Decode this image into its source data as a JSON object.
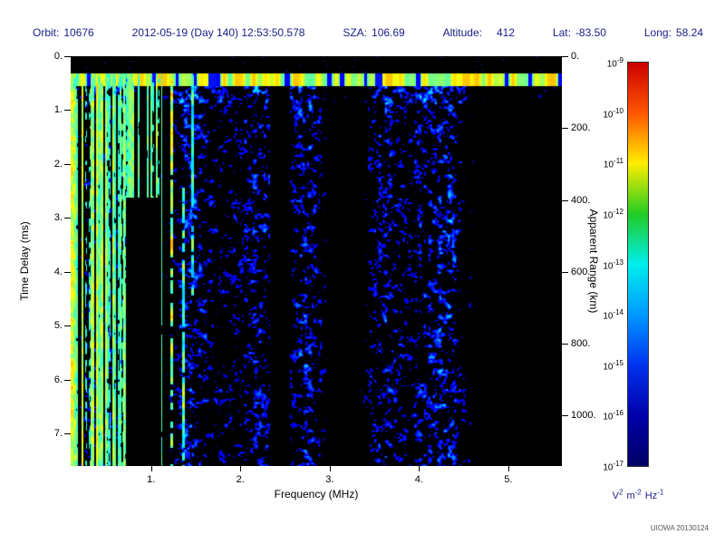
{
  "header": {
    "orbit_label": "Orbit:",
    "orbit_value": "10676",
    "datetime": "2012-05-19 (Day 140) 12:53:50.578",
    "sza_label": "SZA:",
    "sza_value": "106.69",
    "altitude_label": "Altitude:",
    "altitude_value": "412",
    "lat_label": "Lat:",
    "lat_value": "-83.50",
    "long_label": "Long:",
    "long_value": "58.24"
  },
  "axes": {
    "x_title": "Frequency (MHz)",
    "x_tick_labels": [
      "1.",
      "2.",
      "3.",
      "4.",
      "5."
    ],
    "y_left_title": "Time Delay (ms)",
    "y_left_tick_labels": [
      "0.",
      "1.",
      "2.",
      "3.",
      "4.",
      "5.",
      "6.",
      "7."
    ],
    "y_right_title": "Apparent Range (km)",
    "y_right_tick_labels": [
      "0.",
      "200.",
      "400.",
      "600.",
      "800.",
      "1000."
    ]
  },
  "colorbar": {
    "base": "10",
    "exponents": [
      "-9",
      "-10",
      "-11",
      "-12",
      "-13",
      "-14",
      "-15",
      "-16",
      "-17"
    ],
    "unit_parts": [
      {
        "base": "V",
        "exp": "2"
      },
      {
        "base": "m",
        "exp": "-2"
      },
      {
        "base": "Hz",
        "exp": "-1"
      }
    ],
    "colors_top_to_bottom": [
      "#cc0000",
      "#ff5500",
      "#ffee00",
      "#22cc22",
      "#00eeee",
      "#0099ff",
      "#0033ee",
      "#0000aa",
      "#000066"
    ]
  },
  "footer": {
    "watermark": "UIOWA 20130124"
  },
  "chart_data": {
    "type": "heatmap",
    "xlabel": "Frequency (MHz)",
    "ylabel": "Time Delay (ms)",
    "y2label": "Apparent Range (km)",
    "x_ticks": [
      1,
      2,
      3,
      4,
      5
    ],
    "y_left_ticks": [
      0,
      1,
      2,
      3,
      4,
      5,
      6,
      7
    ],
    "y_right_ticks": [
      0,
      200,
      400,
      600,
      800,
      1000
    ],
    "frequency_range_mhz": [
      0.1,
      5.6
    ],
    "time_delay_range_ms": [
      0,
      7.6
    ],
    "apparent_range_km": [
      0,
      1140
    ],
    "colorbar": {
      "scale": "log",
      "min": "1e-17",
      "max": "1e-9",
      "units": "V^2 m^-2 Hz^-1",
      "colormap": "jet"
    },
    "background": "black",
    "features": [
      "bright horizontal echo band at ~0.35 ms time delay spanning all frequencies",
      "dense vertical green/cyan/yellow emission stripes below ~1.5 MHz at all time delays",
      "black notch region near 0.9-1.3 MHz for time delays greater than ~2.7 ms",
      "dark vertical lane near 2.3 MHz",
      "diffuse weak dark-blue speckle noise from 1.5 to 5.5 MHz",
      "denser noise column near 4.0-4.5 MHz",
      "mostly black above the echo band (time delay < 0.3 ms)"
    ]
  }
}
